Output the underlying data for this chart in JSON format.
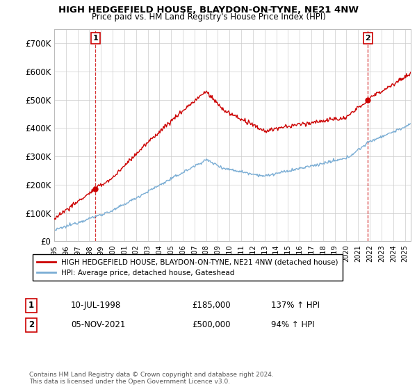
{
  "title": "HIGH HEDGEFIELD HOUSE, BLAYDON-ON-TYNE, NE21 4NW",
  "subtitle": "Price paid vs. HM Land Registry's House Price Index (HPI)",
  "ylim": [
    0,
    750000
  ],
  "yticks": [
    0,
    100000,
    200000,
    300000,
    400000,
    500000,
    600000,
    700000
  ],
  "ytick_labels": [
    "£0",
    "£100K",
    "£200K",
    "£300K",
    "£400K",
    "£500K",
    "£600K",
    "£700K"
  ],
  "sale1": {
    "date_num": 1998.53,
    "price": 185000,
    "label": "1",
    "date_str": "10-JUL-1998",
    "pct": "137% ↑ HPI"
  },
  "sale2": {
    "date_num": 2021.84,
    "price": 500000,
    "label": "2",
    "date_str": "05-NOV-2021",
    "pct": "94% ↑ HPI"
  },
  "xlim": [
    1995.0,
    2025.5
  ],
  "xticks": [
    1995,
    1996,
    1997,
    1998,
    1999,
    2000,
    2001,
    2002,
    2003,
    2004,
    2005,
    2006,
    2007,
    2008,
    2009,
    2010,
    2011,
    2012,
    2013,
    2014,
    2015,
    2016,
    2017,
    2018,
    2019,
    2020,
    2021,
    2022,
    2023,
    2024,
    2025
  ],
  "hpi_color": "#7aadd4",
  "sale_color": "#cc0000",
  "dashed_color": "#cc0000",
  "legend_red_label": "HIGH HEDGEFIELD HOUSE, BLAYDON-ON-TYNE, NE21 4NW (detached house)",
  "legend_blue_label": "HPI: Average price, detached house, Gateshead",
  "footer": "Contains HM Land Registry data © Crown copyright and database right 2024.\nThis data is licensed under the Open Government Licence v3.0."
}
